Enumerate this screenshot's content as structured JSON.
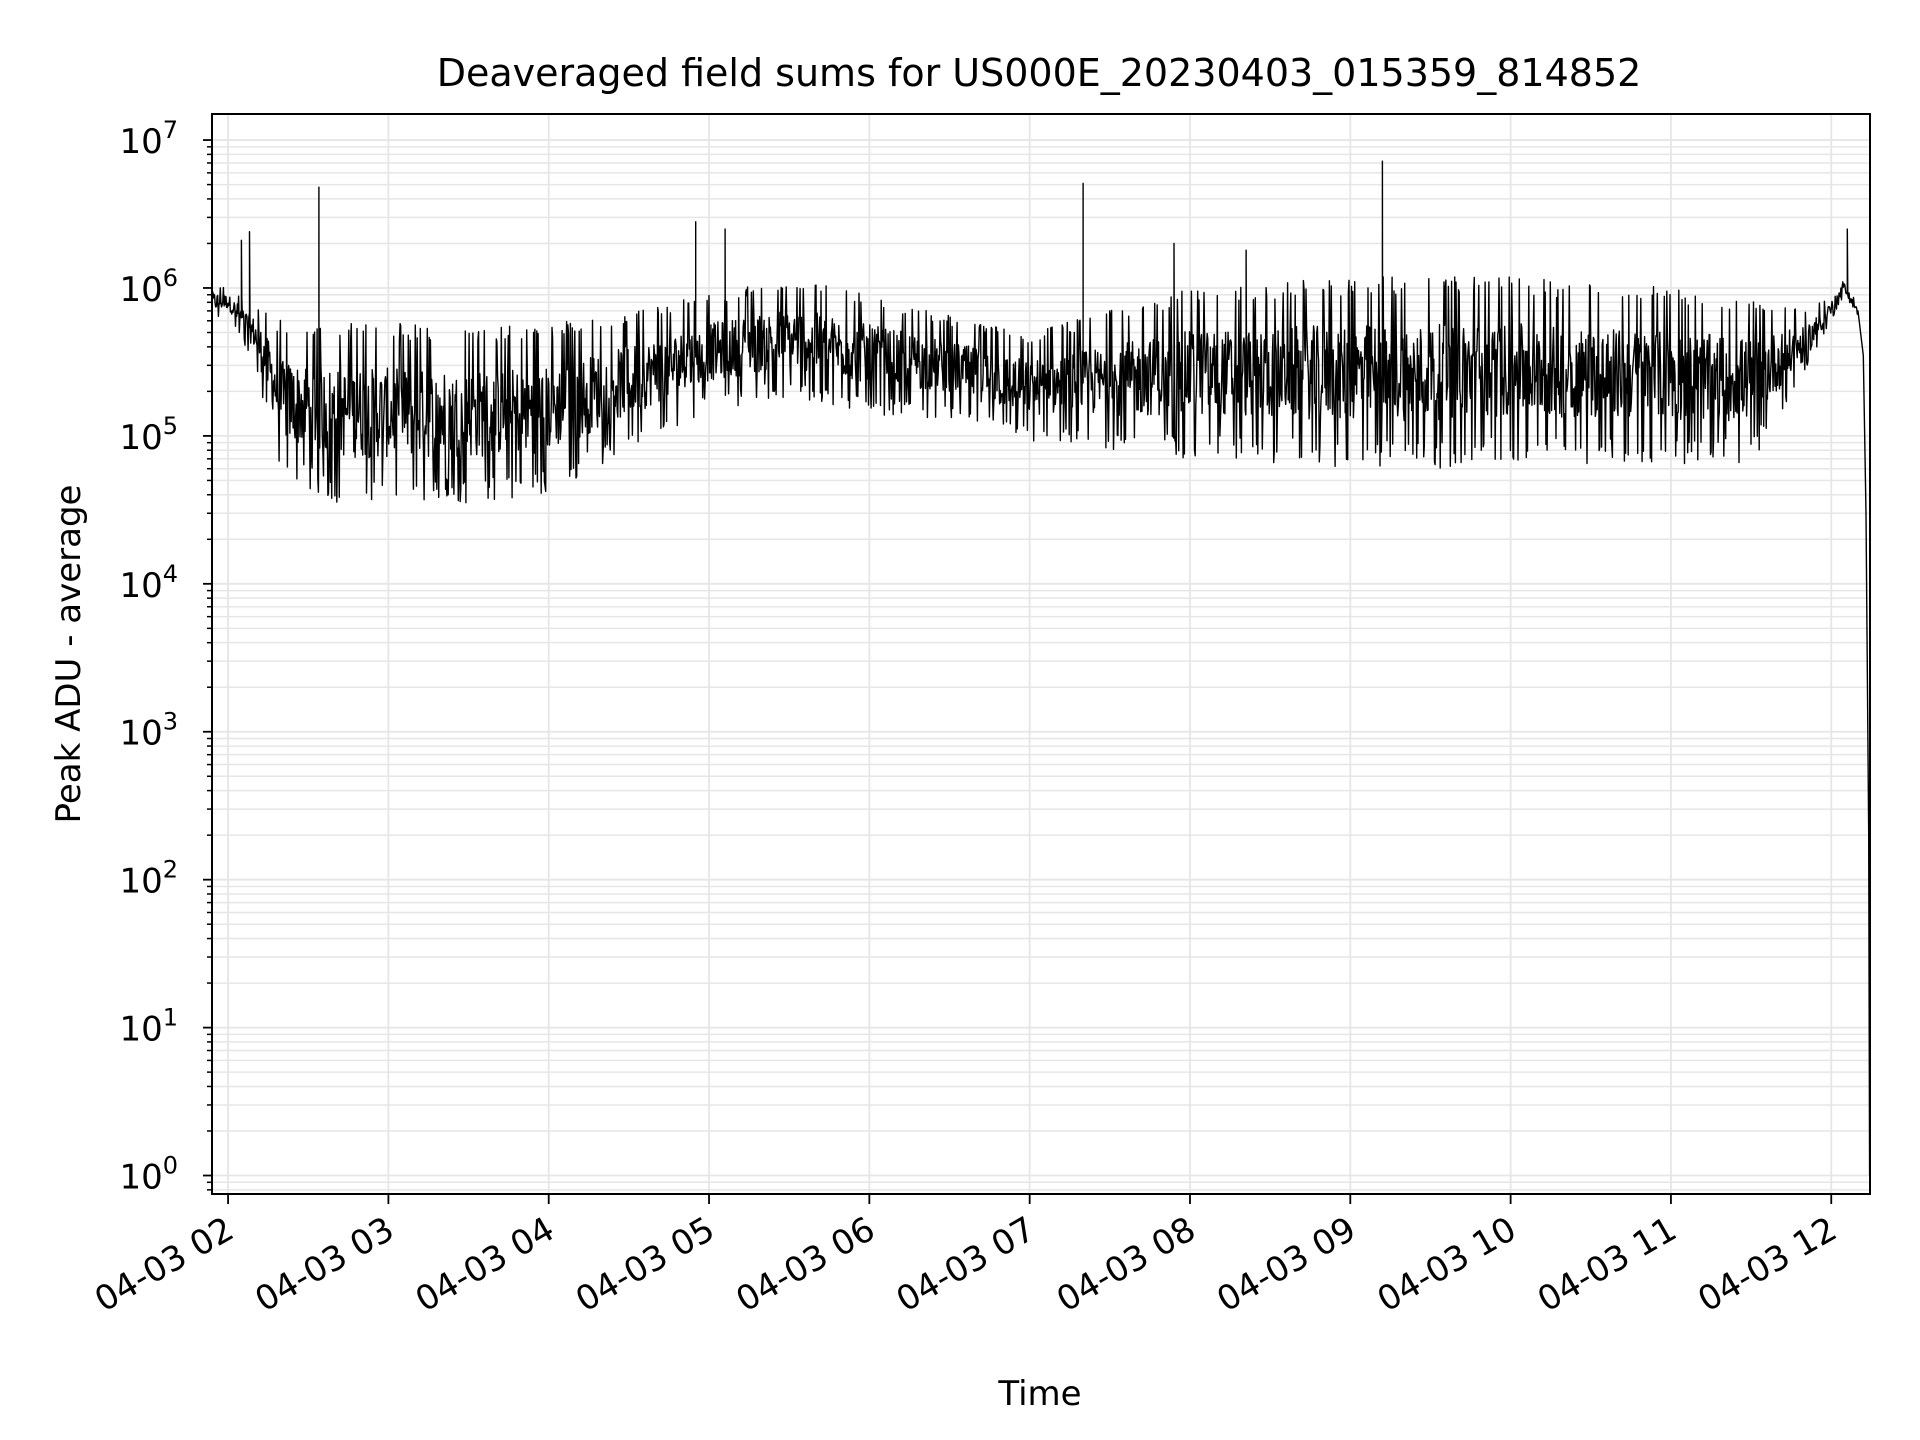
{
  "chart_data": {
    "type": "line",
    "title": "Deaveraged field sums for US000E_20230403_015359_814852",
    "xlabel": "Time",
    "ylabel": "Peak ADU - average",
    "yscale": "log",
    "ylim": [
      0.75,
      15000000
    ],
    "xlim": [
      "04-03 01:53:59",
      "04-03 12:14:30"
    ],
    "grid": true,
    "grid_color": "#e6e6e6",
    "line_color": "#000000",
    "x_ticks": [
      {
        "label": "04-03 02",
        "x": "04-03 02:00"
      },
      {
        "label": "04-03 03",
        "x": "04-03 03:00"
      },
      {
        "label": "04-03 04",
        "x": "04-03 04:00"
      },
      {
        "label": "04-03 05",
        "x": "04-03 05:00"
      },
      {
        "label": "04-03 06",
        "x": "04-03 06:00"
      },
      {
        "label": "04-03 07",
        "x": "04-03 07:00"
      },
      {
        "label": "04-03 08",
        "x": "04-03 08:00"
      },
      {
        "label": "04-03 09",
        "x": "04-03 09:00"
      },
      {
        "label": "04-03 10",
        "x": "04-03 10:00"
      },
      {
        "label": "04-03 11",
        "x": "04-03 11:00"
      },
      {
        "label": "04-03 12",
        "x": "04-03 12:00"
      }
    ],
    "y_ticks": [
      {
        "base": "10",
        "exp": "0",
        "value": 1
      },
      {
        "base": "10",
        "exp": "1",
        "value": 10
      },
      {
        "base": "10",
        "exp": "2",
        "value": 100
      },
      {
        "base": "10",
        "exp": "3",
        "value": 1000
      },
      {
        "base": "10",
        "exp": "4",
        "value": 10000
      },
      {
        "base": "10",
        "exp": "5",
        "value": 100000
      },
      {
        "base": "10",
        "exp": "6",
        "value": 1000000
      },
      {
        "base": "10",
        "exp": "7",
        "value": 10000000
      }
    ],
    "series": [
      {
        "envelope": [
          {
            "x": "04-03 01:54",
            "low": 600000,
            "high": 1100000
          },
          {
            "x": "04-03 02:00",
            "low": 650000,
            "high": 1000000
          },
          {
            "x": "04-03 02:10",
            "low": 300000,
            "high": 800000
          },
          {
            "x": "04-03 02:20",
            "low": 50000,
            "high": 600000
          },
          {
            "x": "04-03 02:40",
            "low": 35000,
            "high": 600000
          },
          {
            "x": "04-03 03:00",
            "low": 35000,
            "high": 580000
          },
          {
            "x": "04-03 03:30",
            "low": 35000,
            "high": 550000
          },
          {
            "x": "04-03 04:00",
            "low": 40000,
            "high": 580000
          },
          {
            "x": "04-03 04:30",
            "low": 80000,
            "high": 700000
          },
          {
            "x": "04-03 05:00",
            "low": 150000,
            "high": 900000
          },
          {
            "x": "04-03 05:30",
            "low": 180000,
            "high": 1200000
          },
          {
            "x": "04-03 06:00",
            "low": 140000,
            "high": 900000
          },
          {
            "x": "04-03 06:30",
            "low": 130000,
            "high": 650000
          },
          {
            "x": "04-03 07:00",
            "low": 90000,
            "high": 500000
          },
          {
            "x": "04-03 07:30",
            "low": 80000,
            "high": 700000
          },
          {
            "x": "04-03 08:00",
            "low": 70000,
            "high": 1000000
          },
          {
            "x": "04-03 08:30",
            "low": 65000,
            "high": 1100000
          },
          {
            "x": "04-03 09:00",
            "low": 60000,
            "high": 1200000
          },
          {
            "x": "04-03 09:30",
            "low": 60000,
            "high": 1200000
          },
          {
            "x": "04-03 10:00",
            "low": 65000,
            "high": 1200000
          },
          {
            "x": "04-03 10:30",
            "low": 65000,
            "high": 1100000
          },
          {
            "x": "04-03 11:00",
            "low": 65000,
            "high": 1000000
          },
          {
            "x": "04-03 11:30",
            "low": 65000,
            "high": 900000
          },
          {
            "x": "04-03 11:50",
            "low": 250000,
            "high": 700000
          },
          {
            "x": "04-03 12:00",
            "low": 600000,
            "high": 900000
          },
          {
            "x": "04-03 12:05",
            "low": 900000,
            "high": 1150000
          },
          {
            "x": "04-03 12:10",
            "low": 600000,
            "high": 750000
          }
        ],
        "spikes": [
          {
            "x": "04-03 02:05",
            "y": 2100000
          },
          {
            "x": "04-03 02:08",
            "y": 2400000
          },
          {
            "x": "04-03 02:34",
            "y": 4800000
          },
          {
            "x": "04-03 04:55",
            "y": 2800000
          },
          {
            "x": "04-03 05:06",
            "y": 2500000
          },
          {
            "x": "04-03 07:20",
            "y": 5100000
          },
          {
            "x": "04-03 07:54",
            "y": 2000000
          },
          {
            "x": "04-03 08:21",
            "y": 1800000
          },
          {
            "x": "04-03 09:12",
            "y": 7200000
          },
          {
            "x": "04-03 12:06",
            "y": 2500000
          }
        ],
        "drop": [
          {
            "x": "04-03 12:10",
            "y": 700000
          },
          {
            "x": "04-03 12:12",
            "y": 350000
          },
          {
            "x": "04-03 12:13",
            "y": 30000
          },
          {
            "x": "04-03 12:14",
            "y": 200
          },
          {
            "x": "04-03 12:14:20",
            "y": 1
          },
          {
            "x": "04-03 12:14:30",
            "y": 1.5
          }
        ]
      }
    ]
  }
}
